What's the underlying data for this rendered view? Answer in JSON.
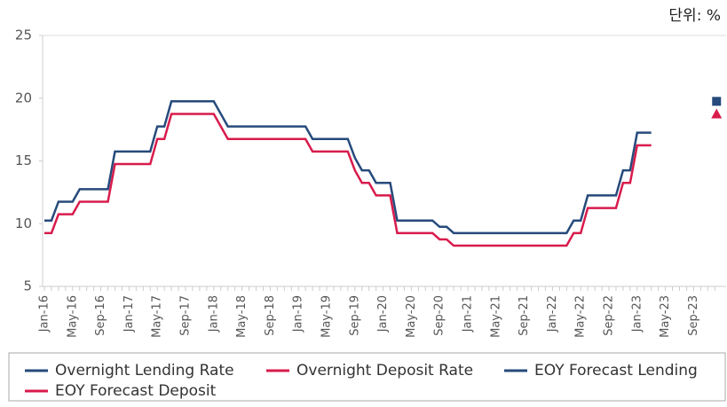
{
  "chart_data": {
    "type": "line",
    "unit_note": "단위: %",
    "categories": [
      "Jan-16",
      null,
      null,
      null,
      "May-16",
      null,
      null,
      null,
      "Sep-16",
      null,
      null,
      null,
      "Jan-17",
      null,
      null,
      null,
      "May-17",
      null,
      null,
      null,
      "Sep-17",
      null,
      null,
      null,
      "Jan-18",
      null,
      null,
      null,
      "May-18",
      null,
      null,
      null,
      "Sep-18",
      null,
      null,
      null,
      "Jan-19",
      null,
      null,
      null,
      "May-19",
      null,
      null,
      null,
      "Sep-19",
      null,
      null,
      null,
      "Jan-20",
      null,
      null,
      null,
      "May-20",
      null,
      null,
      null,
      "Sep-20",
      null,
      null,
      null,
      "Jan-21",
      null,
      null,
      null,
      "May-21",
      null,
      null,
      null,
      "Sep-21",
      null,
      null,
      null,
      "Jan-22",
      null,
      null,
      null,
      "May-22",
      null,
      null,
      null,
      "Sep-22",
      null,
      null,
      null,
      "Jan-23",
      null,
      null,
      null,
      "May-23",
      null,
      null,
      null,
      "Sep-23",
      null,
      null,
      null
    ],
    "series": [
      {
        "name": "Overnight Lending Rate",
        "color": "#264a7b",
        "marker": "line",
        "values": [
          10.25,
          10.25,
          11.75,
          11.75,
          11.75,
          12.75,
          12.75,
          12.75,
          12.75,
          12.75,
          15.75,
          15.75,
          15.75,
          15.75,
          15.75,
          15.75,
          17.75,
          17.75,
          19.75,
          19.75,
          19.75,
          19.75,
          19.75,
          19.75,
          19.75,
          18.75,
          17.75,
          17.75,
          17.75,
          17.75,
          17.75,
          17.75,
          17.75,
          17.75,
          17.75,
          17.75,
          17.75,
          17.75,
          16.75,
          16.75,
          16.75,
          16.75,
          16.75,
          16.75,
          15.25,
          14.25,
          14.25,
          13.25,
          13.25,
          13.25,
          10.25,
          10.25,
          10.25,
          10.25,
          10.25,
          10.25,
          9.75,
          9.75,
          9.25,
          9.25,
          9.25,
          9.25,
          9.25,
          9.25,
          9.25,
          9.25,
          9.25,
          9.25,
          9.25,
          9.25,
          9.25,
          9.25,
          9.25,
          9.25,
          9.25,
          10.25,
          10.25,
          12.25,
          12.25,
          12.25,
          12.25,
          12.25,
          14.25,
          14.25,
          17.25,
          17.25,
          17.25,
          null,
          null,
          null,
          null,
          null,
          null,
          null,
          null,
          null
        ]
      },
      {
        "name": "Overnight Deposit Rate",
        "color": "#d81b4c",
        "marker": "line",
        "values": [
          9.25,
          9.25,
          10.75,
          10.75,
          10.75,
          11.75,
          11.75,
          11.75,
          11.75,
          11.75,
          14.75,
          14.75,
          14.75,
          14.75,
          14.75,
          14.75,
          16.75,
          16.75,
          18.75,
          18.75,
          18.75,
          18.75,
          18.75,
          18.75,
          18.75,
          17.75,
          16.75,
          16.75,
          16.75,
          16.75,
          16.75,
          16.75,
          16.75,
          16.75,
          16.75,
          16.75,
          16.75,
          16.75,
          15.75,
          15.75,
          15.75,
          15.75,
          15.75,
          15.75,
          14.25,
          13.25,
          13.25,
          12.25,
          12.25,
          12.25,
          9.25,
          9.25,
          9.25,
          9.25,
          9.25,
          9.25,
          8.75,
          8.75,
          8.25,
          8.25,
          8.25,
          8.25,
          8.25,
          8.25,
          8.25,
          8.25,
          8.25,
          8.25,
          8.25,
          8.25,
          8.25,
          8.25,
          8.25,
          8.25,
          8.25,
          9.25,
          9.25,
          11.25,
          11.25,
          11.25,
          11.25,
          11.25,
          13.25,
          13.25,
          16.25,
          16.25,
          16.25,
          null,
          null,
          null,
          null,
          null,
          null,
          null,
          null,
          null
        ]
      },
      {
        "name": "EOY Forecast Lending",
        "color": "#264a7b",
        "marker": "square",
        "values": [
          null,
          null,
          null,
          null,
          null,
          null,
          null,
          null,
          null,
          null,
          null,
          null,
          null,
          null,
          null,
          null,
          null,
          null,
          null,
          null,
          null,
          null,
          null,
          null,
          null,
          null,
          null,
          null,
          null,
          null,
          null,
          null,
          null,
          null,
          null,
          null,
          null,
          null,
          null,
          null,
          null,
          null,
          null,
          null,
          null,
          null,
          null,
          null,
          null,
          null,
          null,
          null,
          null,
          null,
          null,
          null,
          null,
          null,
          null,
          null,
          null,
          null,
          null,
          null,
          null,
          null,
          null,
          null,
          null,
          null,
          null,
          null,
          null,
          null,
          null,
          null,
          null,
          null,
          null,
          null,
          null,
          null,
          null,
          null,
          null,
          null,
          null,
          null,
          null,
          null,
          null,
          null,
          null,
          null,
          null,
          19.75
        ]
      },
      {
        "name": "EOY Forecast Deposit",
        "color": "#d81b4c",
        "marker": "triangle",
        "values": [
          null,
          null,
          null,
          null,
          null,
          null,
          null,
          null,
          null,
          null,
          null,
          null,
          null,
          null,
          null,
          null,
          null,
          null,
          null,
          null,
          null,
          null,
          null,
          null,
          null,
          null,
          null,
          null,
          null,
          null,
          null,
          null,
          null,
          null,
          null,
          null,
          null,
          null,
          null,
          null,
          null,
          null,
          null,
          null,
          null,
          null,
          null,
          null,
          null,
          null,
          null,
          null,
          null,
          null,
          null,
          null,
          null,
          null,
          null,
          null,
          null,
          null,
          null,
          null,
          null,
          null,
          null,
          null,
          null,
          null,
          null,
          null,
          null,
          null,
          null,
          null,
          null,
          null,
          null,
          null,
          null,
          null,
          null,
          null,
          null,
          null,
          null,
          null,
          null,
          null,
          null,
          null,
          null,
          null,
          null,
          18.75
        ]
      }
    ],
    "ylim": [
      5,
      25
    ],
    "yticks": [
      5,
      10,
      15,
      20,
      25
    ],
    "grid": false
  }
}
